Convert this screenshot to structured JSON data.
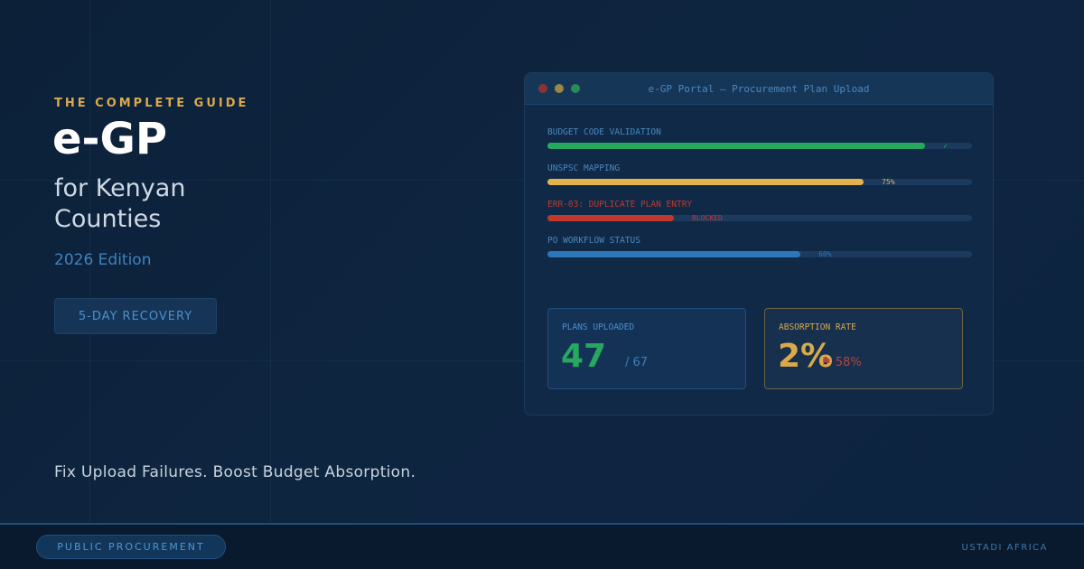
{
  "hero": {
    "kicker": "THE COMPLETE GUIDE",
    "title": "e-GP",
    "subtitle": "for Kenyan Counties",
    "edition": "2026 Edition",
    "cta_label": "5-DAY RECOVERY",
    "tagline": "Fix Upload Failures. Boost Budget Absorption."
  },
  "window": {
    "title": "e-GP Portal — Procurement Plan Upload",
    "progress": [
      {
        "label": "BUDGET CODE VALIDATION",
        "value": 0.89,
        "note": "✓",
        "color": "#27a85f"
      },
      {
        "label": "UNSPSC MAPPING",
        "value": 0.745,
        "note": "75%",
        "color": "#e3b44c"
      },
      {
        "label": "ERR-03: DUPLICATE PLAN ENTRY",
        "value": 0.298,
        "note": "BLOCKED",
        "color": "#c0392b"
      },
      {
        "label": "PO WORKFLOW STATUS",
        "value": 0.596,
        "note": "60%",
        "color": "#2c76ba"
      }
    ],
    "stats": {
      "plans_label": "PLANS UPLOADED",
      "plans_value": "47",
      "plans_total": "/ 67",
      "absorption_label": "ABSORPTION RATE",
      "absorption_value": "2%",
      "absorption_target": "⚑ 58%"
    }
  },
  "footer": {
    "category": "PUBLIC PROCUREMENT",
    "brand": "USTADI AFRICA"
  },
  "colors": {
    "accent_gold": "#d9a94c",
    "accent_blue": "#3f83bd",
    "success": "#27a85f",
    "danger": "#c0392b"
  }
}
